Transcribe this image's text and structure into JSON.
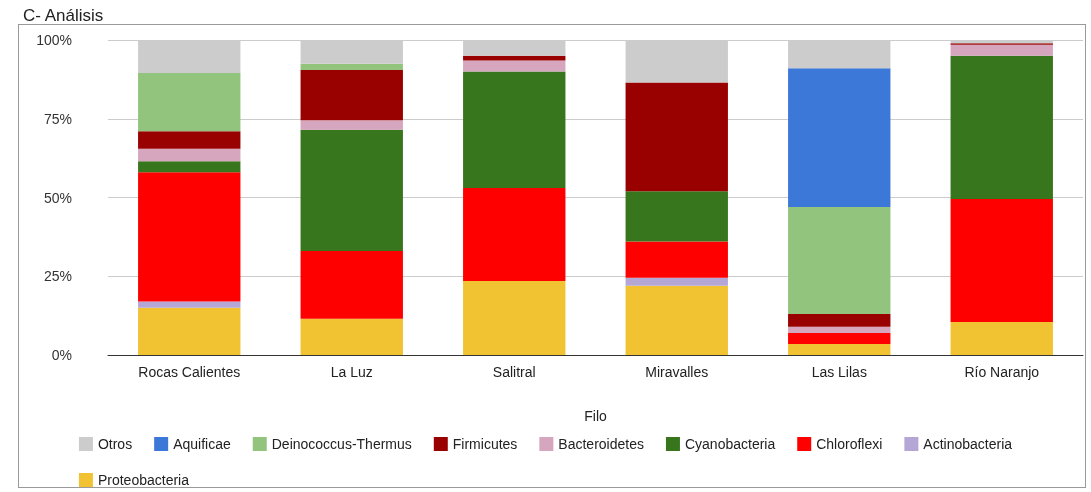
{
  "chart_data": {
    "type": "bar",
    "title": "C- Análisis",
    "xlabel": "Filo",
    "categories": [
      "Rocas Calientes",
      "La Luz",
      "Salitral",
      "Miravalles",
      "Las Lilas",
      "Río Naranjo"
    ],
    "stacked": true,
    "series": [
      {
        "name": "Proteobacteria",
        "color": "#f1c232",
        "values": [
          15,
          11.5,
          23.5,
          22,
          3.5,
          10.5
        ]
      },
      {
        "name": "Actinobacteria",
        "color": "#b4a7d6",
        "values": [
          2,
          0,
          0,
          2.5,
          0,
          0
        ]
      },
      {
        "name": "Chloroflexi",
        "color": "#ff0000",
        "values": [
          41,
          21.5,
          29.5,
          11.5,
          3.5,
          39
        ]
      },
      {
        "name": "Cyanobacteria",
        "color": "#38761d",
        "values": [
          3.5,
          38.5,
          37,
          16,
          0,
          45.5
        ]
      },
      {
        "name": "Bacteroidetes",
        "color": "#d5a6bd",
        "values": [
          4,
          3,
          3.5,
          0,
          2,
          3.5
        ]
      },
      {
        "name": "Firmicutes",
        "color": "#990000",
        "values": [
          5.5,
          16,
          1.5,
          34.5,
          4,
          0.5
        ]
      },
      {
        "name": "Deinococcus-Thermus",
        "color": "#93c47d",
        "values": [
          18.5,
          2,
          0,
          0,
          34,
          0
        ]
      },
      {
        "name": "Aquificae",
        "color": "#3c78d8",
        "values": [
          0,
          0,
          0,
          0,
          44,
          0
        ]
      },
      {
        "name": "Otros",
        "color": "#cccccc",
        "values": [
          10.5,
          7.5,
          5,
          13.5,
          9,
          1
        ]
      }
    ],
    "ylim": [
      0,
      100
    ],
    "yticks": [
      {
        "value": 0,
        "label": "0%"
      },
      {
        "value": 25,
        "label": "25%"
      },
      {
        "value": 50,
        "label": "50%"
      },
      {
        "value": 75,
        "label": "75%"
      },
      {
        "value": 100,
        "label": "100%"
      }
    ],
    "grid": "y",
    "legend": "bottom"
  }
}
